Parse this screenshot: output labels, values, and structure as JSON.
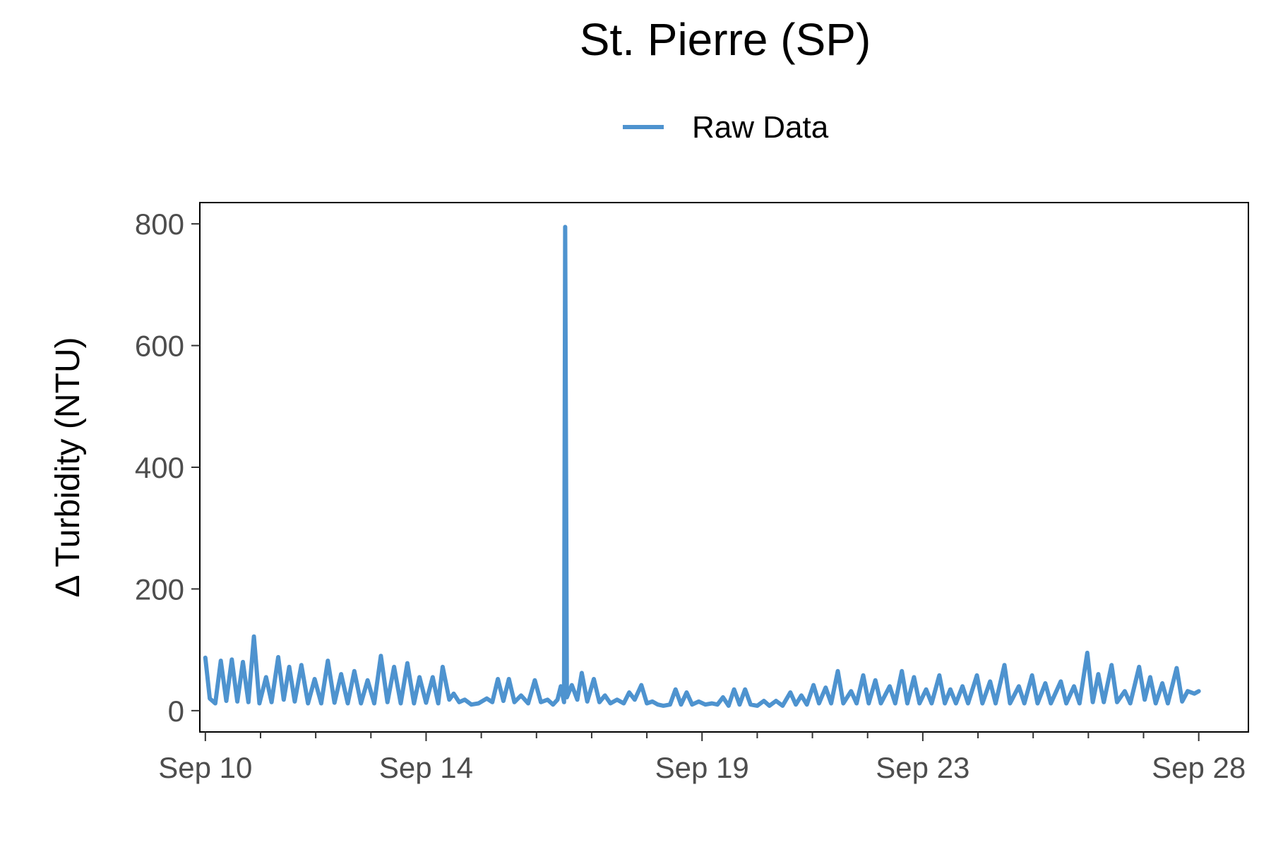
{
  "chart_data": {
    "type": "line",
    "title": "St. Pierre (SP)",
    "xlabel": "",
    "ylabel": "Δ Turbidity (NTU)",
    "x_unit": "date (September, day of month)",
    "xlim": [
      9.9,
      28.9
    ],
    "ylim": [
      -35,
      835
    ],
    "legend": {
      "placement": "top",
      "entries": [
        "Raw Data"
      ]
    },
    "grid": false,
    "x_ticks": [
      {
        "value": 10,
        "label": "Sep 10"
      },
      {
        "value": 14,
        "label": "Sep 14"
      },
      {
        "value": 19,
        "label": "Sep 19"
      },
      {
        "value": 23,
        "label": "Sep 23"
      },
      {
        "value": 28,
        "label": "Sep 28"
      }
    ],
    "x_minor_ticks": [
      11,
      12,
      13,
      15,
      16,
      17,
      18,
      20,
      21,
      22,
      24,
      25,
      26,
      27
    ],
    "y_ticks": [
      0,
      200,
      400,
      600,
      800
    ],
    "series": [
      {
        "name": "Raw Data",
        "color": "#4E93CF",
        "points": [
          [
            10.0,
            87
          ],
          [
            10.08,
            20
          ],
          [
            10.18,
            12
          ],
          [
            10.28,
            82
          ],
          [
            10.38,
            16
          ],
          [
            10.48,
            84
          ],
          [
            10.58,
            15
          ],
          [
            10.68,
            80
          ],
          [
            10.78,
            14
          ],
          [
            10.88,
            122
          ],
          [
            10.98,
            12
          ],
          [
            11.1,
            55
          ],
          [
            11.2,
            14
          ],
          [
            11.32,
            88
          ],
          [
            11.42,
            18
          ],
          [
            11.52,
            72
          ],
          [
            11.62,
            15
          ],
          [
            11.74,
            75
          ],
          [
            11.86,
            12
          ],
          [
            11.98,
            52
          ],
          [
            12.1,
            12
          ],
          [
            12.22,
            82
          ],
          [
            12.34,
            13
          ],
          [
            12.46,
            60
          ],
          [
            12.58,
            12
          ],
          [
            12.7,
            65
          ],
          [
            12.82,
            12
          ],
          [
            12.94,
            50
          ],
          [
            13.06,
            12
          ],
          [
            13.18,
            90
          ],
          [
            13.3,
            14
          ],
          [
            13.42,
            72
          ],
          [
            13.54,
            12
          ],
          [
            13.66,
            78
          ],
          [
            13.78,
            12
          ],
          [
            13.88,
            55
          ],
          [
            14.0,
            13
          ],
          [
            14.12,
            55
          ],
          [
            14.22,
            12
          ],
          [
            14.3,
            72
          ],
          [
            14.42,
            18
          ],
          [
            14.5,
            28
          ],
          [
            14.6,
            14
          ],
          [
            14.7,
            18
          ],
          [
            14.82,
            10
          ],
          [
            14.95,
            12
          ],
          [
            15.1,
            20
          ],
          [
            15.2,
            14
          ],
          [
            15.3,
            52
          ],
          [
            15.4,
            16
          ],
          [
            15.5,
            52
          ],
          [
            15.6,
            14
          ],
          [
            15.72,
            25
          ],
          [
            15.85,
            12
          ],
          [
            15.97,
            50
          ],
          [
            16.08,
            14
          ],
          [
            16.2,
            18
          ],
          [
            16.3,
            10
          ],
          [
            16.38,
            18
          ],
          [
            16.44,
            40
          ],
          [
            16.5,
            14
          ],
          [
            16.52,
            795
          ],
          [
            16.55,
            22
          ],
          [
            16.64,
            42
          ],
          [
            16.74,
            18
          ],
          [
            16.82,
            62
          ],
          [
            16.92,
            15
          ],
          [
            17.04,
            52
          ],
          [
            17.14,
            14
          ],
          [
            17.24,
            25
          ],
          [
            17.34,
            12
          ],
          [
            17.46,
            18
          ],
          [
            17.58,
            12
          ],
          [
            17.68,
            30
          ],
          [
            17.78,
            18
          ],
          [
            17.9,
            42
          ],
          [
            18.0,
            12
          ],
          [
            18.1,
            15
          ],
          [
            18.2,
            10
          ],
          [
            18.3,
            8
          ],
          [
            18.42,
            10
          ],
          [
            18.52,
            35
          ],
          [
            18.62,
            10
          ],
          [
            18.72,
            30
          ],
          [
            18.82,
            10
          ],
          [
            18.94,
            15
          ],
          [
            19.06,
            10
          ],
          [
            19.18,
            12
          ],
          [
            19.28,
            10
          ],
          [
            19.38,
            22
          ],
          [
            19.48,
            8
          ],
          [
            19.58,
            35
          ],
          [
            19.68,
            10
          ],
          [
            19.78,
            35
          ],
          [
            19.88,
            10
          ],
          [
            20.0,
            8
          ],
          [
            20.12,
            16
          ],
          [
            20.22,
            8
          ],
          [
            20.34,
            16
          ],
          [
            20.46,
            8
          ],
          [
            20.6,
            30
          ],
          [
            20.7,
            10
          ],
          [
            20.8,
            25
          ],
          [
            20.9,
            10
          ],
          [
            21.02,
            42
          ],
          [
            21.12,
            12
          ],
          [
            21.24,
            38
          ],
          [
            21.34,
            12
          ],
          [
            21.46,
            65
          ],
          [
            21.56,
            12
          ],
          [
            21.7,
            32
          ],
          [
            21.8,
            12
          ],
          [
            21.92,
            58
          ],
          [
            22.02,
            12
          ],
          [
            22.14,
            50
          ],
          [
            22.24,
            12
          ],
          [
            22.4,
            40
          ],
          [
            22.5,
            12
          ],
          [
            22.62,
            65
          ],
          [
            22.72,
            12
          ],
          [
            22.84,
            55
          ],
          [
            22.94,
            12
          ],
          [
            23.06,
            35
          ],
          [
            23.16,
            12
          ],
          [
            23.3,
            58
          ],
          [
            23.4,
            12
          ],
          [
            23.5,
            35
          ],
          [
            23.6,
            12
          ],
          [
            23.72,
            40
          ],
          [
            23.82,
            12
          ],
          [
            23.98,
            58
          ],
          [
            24.08,
            12
          ],
          [
            24.22,
            48
          ],
          [
            24.32,
            12
          ],
          [
            24.48,
            75
          ],
          [
            24.58,
            12
          ],
          [
            24.74,
            40
          ],
          [
            24.84,
            12
          ],
          [
            24.98,
            58
          ],
          [
            25.08,
            12
          ],
          [
            25.22,
            45
          ],
          [
            25.32,
            12
          ],
          [
            25.5,
            48
          ],
          [
            25.6,
            12
          ],
          [
            25.74,
            40
          ],
          [
            25.84,
            12
          ],
          [
            25.98,
            95
          ],
          [
            26.08,
            14
          ],
          [
            26.18,
            60
          ],
          [
            26.28,
            14
          ],
          [
            26.42,
            75
          ],
          [
            26.52,
            14
          ],
          [
            26.66,
            32
          ],
          [
            26.76,
            12
          ],
          [
            26.92,
            72
          ],
          [
            27.02,
            18
          ],
          [
            27.12,
            55
          ],
          [
            27.22,
            12
          ],
          [
            27.34,
            45
          ],
          [
            27.44,
            12
          ],
          [
            27.6,
            70
          ],
          [
            27.7,
            15
          ],
          [
            27.8,
            32
          ],
          [
            27.92,
            28
          ],
          [
            28.0,
            32
          ]
        ]
      }
    ]
  }
}
